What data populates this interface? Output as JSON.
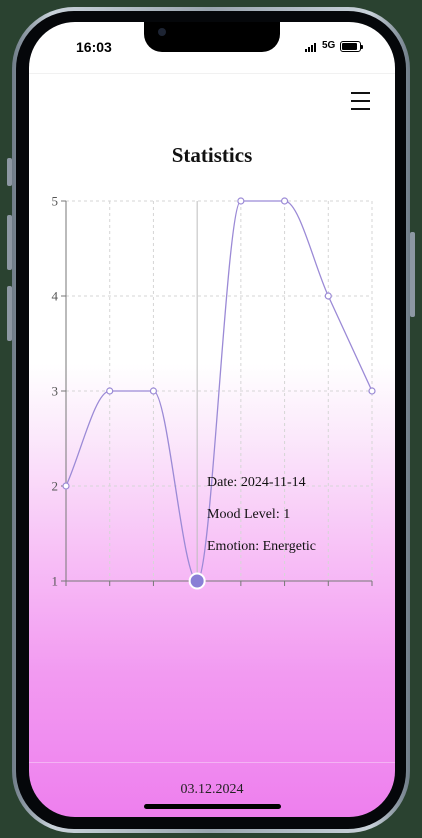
{
  "status_bar": {
    "time": "16:03",
    "network": "5G"
  },
  "page": {
    "title": "Statistics"
  },
  "chart_data": {
    "type": "line",
    "x": [
      "",
      "",
      "",
      "2024-11-14",
      "",
      "",
      "",
      ""
    ],
    "values": [
      2,
      3,
      3,
      1,
      5,
      5,
      4,
      3
    ],
    "y_ticks": [
      "1",
      "2",
      "3",
      "4",
      "5"
    ],
    "ylim": [
      1,
      5
    ],
    "grid": true,
    "line_color": "#9b8ad6",
    "active_point_color": "#8a7fd6",
    "active_index": 3
  },
  "tooltip": {
    "date": "Date: 2024-11-14",
    "mood": "Mood Level: 1",
    "emotion": "Emotion: Energetic"
  },
  "footer": {
    "date": "03.12.2024"
  }
}
